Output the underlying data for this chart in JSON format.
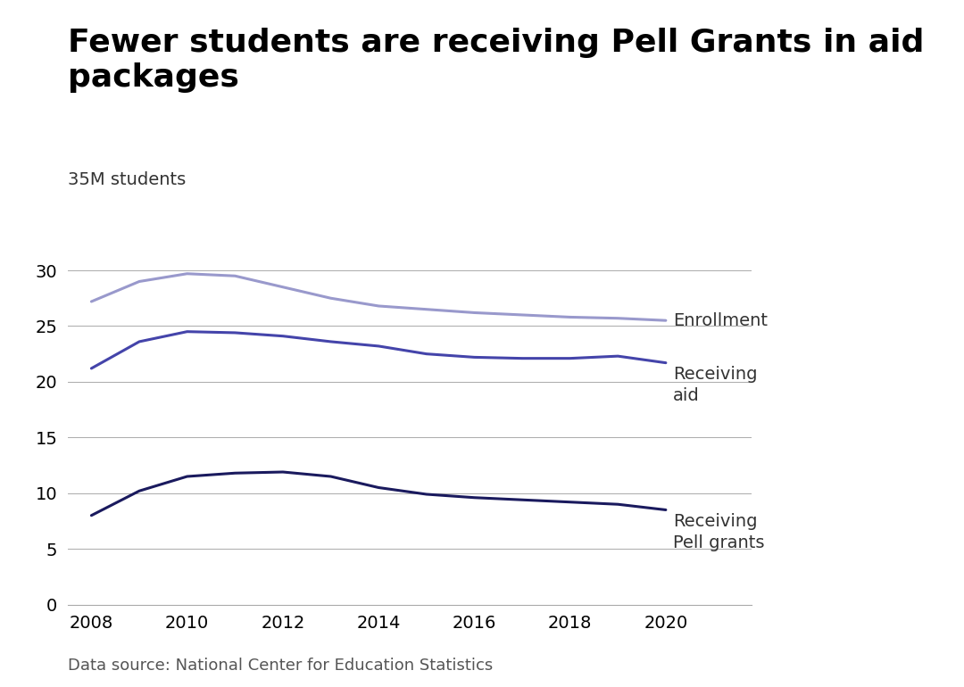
{
  "title": "Fewer students are receiving Pell Grants in aid\npackages",
  "ylabel": "35M students",
  "source": "Data source: National Center for Education Statistics",
  "years": [
    2008,
    2009,
    2010,
    2011,
    2012,
    2013,
    2014,
    2015,
    2016,
    2017,
    2018,
    2019,
    2020
  ],
  "enrollment": [
    27.2,
    29.0,
    29.7,
    29.5,
    28.5,
    27.5,
    26.8,
    26.5,
    26.2,
    26.0,
    25.8,
    25.7,
    25.5
  ],
  "receiving_aid": [
    21.2,
    23.6,
    24.5,
    24.4,
    24.1,
    23.6,
    23.2,
    22.5,
    22.2,
    22.1,
    22.1,
    22.3,
    21.7
  ],
  "receiving_pell": [
    8.0,
    10.2,
    11.5,
    11.8,
    11.9,
    11.5,
    10.5,
    9.9,
    9.6,
    9.4,
    9.2,
    9.0,
    8.5
  ],
  "enrollment_color": "#9999cc",
  "receiving_aid_color": "#4444aa",
  "receiving_pell_color": "#1a1a5e",
  "background_color": "#ffffff",
  "ylim": [
    0,
    37
  ],
  "yticks": [
    0,
    5,
    10,
    15,
    20,
    25,
    30
  ],
  "xticks": [
    2008,
    2010,
    2012,
    2014,
    2016,
    2018,
    2020
  ],
  "enrollment_label": "Enrollment",
  "receiving_aid_label": "Receiving\naid",
  "receiving_pell_label": "Receiving\nPell grants",
  "title_fontsize": 26,
  "label_fontsize": 14,
  "tick_fontsize": 14,
  "source_fontsize": 13
}
